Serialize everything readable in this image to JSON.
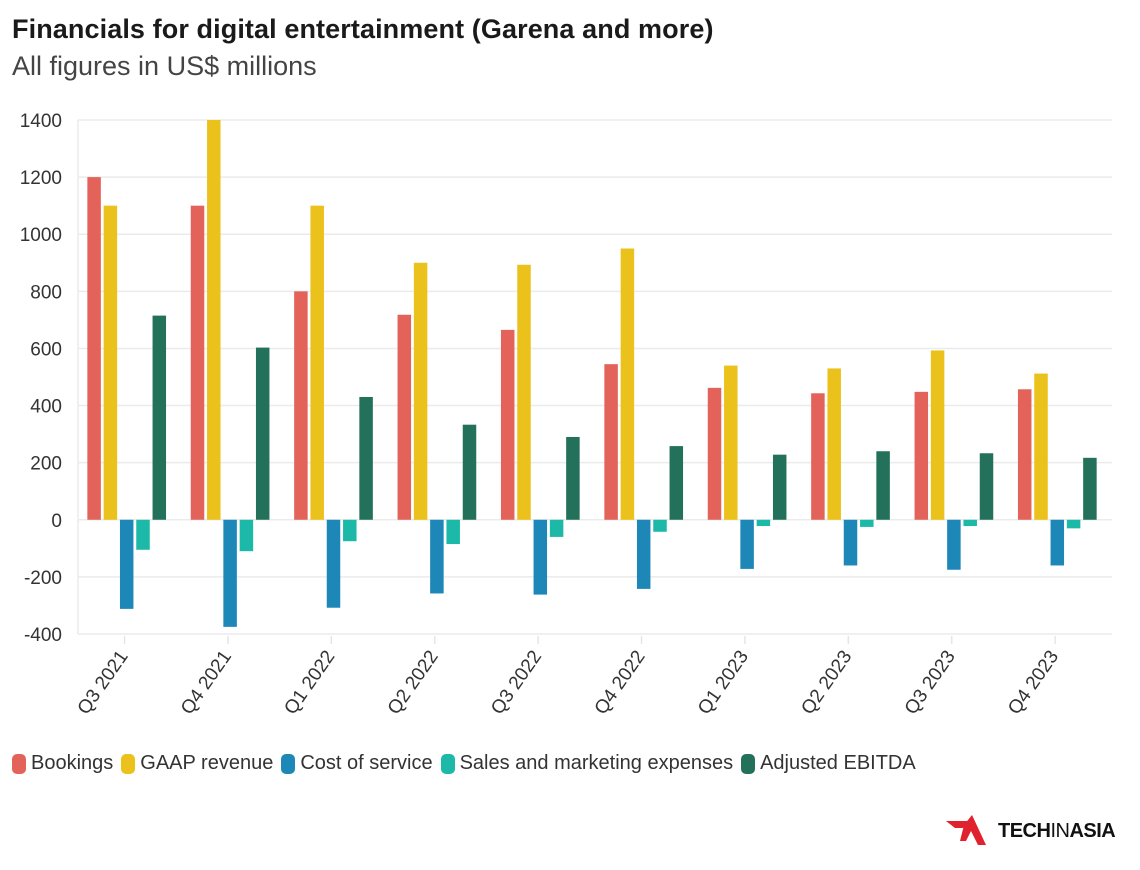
{
  "header": {
    "title": "Financials for digital entertainment (Garena and more)",
    "subtitle": "All figures in US$ millions"
  },
  "logo": {
    "text_bold_1": "TECH",
    "text_thin": "IN",
    "text_bold_2": "ASIA",
    "accent": "#e0212e"
  },
  "chart_data": {
    "type": "bar",
    "title": "Financials for digital entertainment (Garena and more)",
    "subtitle": "All figures in US$ millions",
    "xlabel": "",
    "ylabel": "",
    "ylim": [
      -400,
      1400
    ],
    "yticks": [
      1400,
      1200,
      1000,
      800,
      600,
      400,
      200,
      0,
      -200,
      -400
    ],
    "grid": true,
    "legend_position": "bottom-left",
    "categories": [
      "Q3 2021",
      "Q4 2021",
      "Q1 2022",
      "Q2 2022",
      "Q3 2022",
      "Q4 2022",
      "Q1 2023",
      "Q2 2023",
      "Q3 2023",
      "Q4 2023"
    ],
    "series": [
      {
        "name": "Bookings",
        "color": "#e3635a",
        "values": [
          1200,
          1100,
          800,
          718,
          665,
          545,
          462,
          443,
          448,
          457
        ]
      },
      {
        "name": "GAAP revenue",
        "color": "#ebc11c",
        "values": [
          1100,
          1400,
          1100,
          900,
          893,
          950,
          540,
          530,
          593,
          512
        ]
      },
      {
        "name": "Cost of service",
        "color": "#1d87b8",
        "values": [
          -312,
          -375,
          -308,
          -258,
          -262,
          -242,
          -172,
          -160,
          -175,
          -160
        ]
      },
      {
        "name": "Sales and marketing expenses",
        "color": "#1cb8a8",
        "values": [
          -105,
          -110,
          -75,
          -85,
          -60,
          -42,
          -22,
          -25,
          -22,
          -30
        ]
      },
      {
        "name": "Adjusted EBITDA",
        "color": "#23715a",
        "values": [
          715,
          603,
          430,
          333,
          290,
          258,
          228,
          240,
          233,
          217
        ]
      }
    ]
  }
}
